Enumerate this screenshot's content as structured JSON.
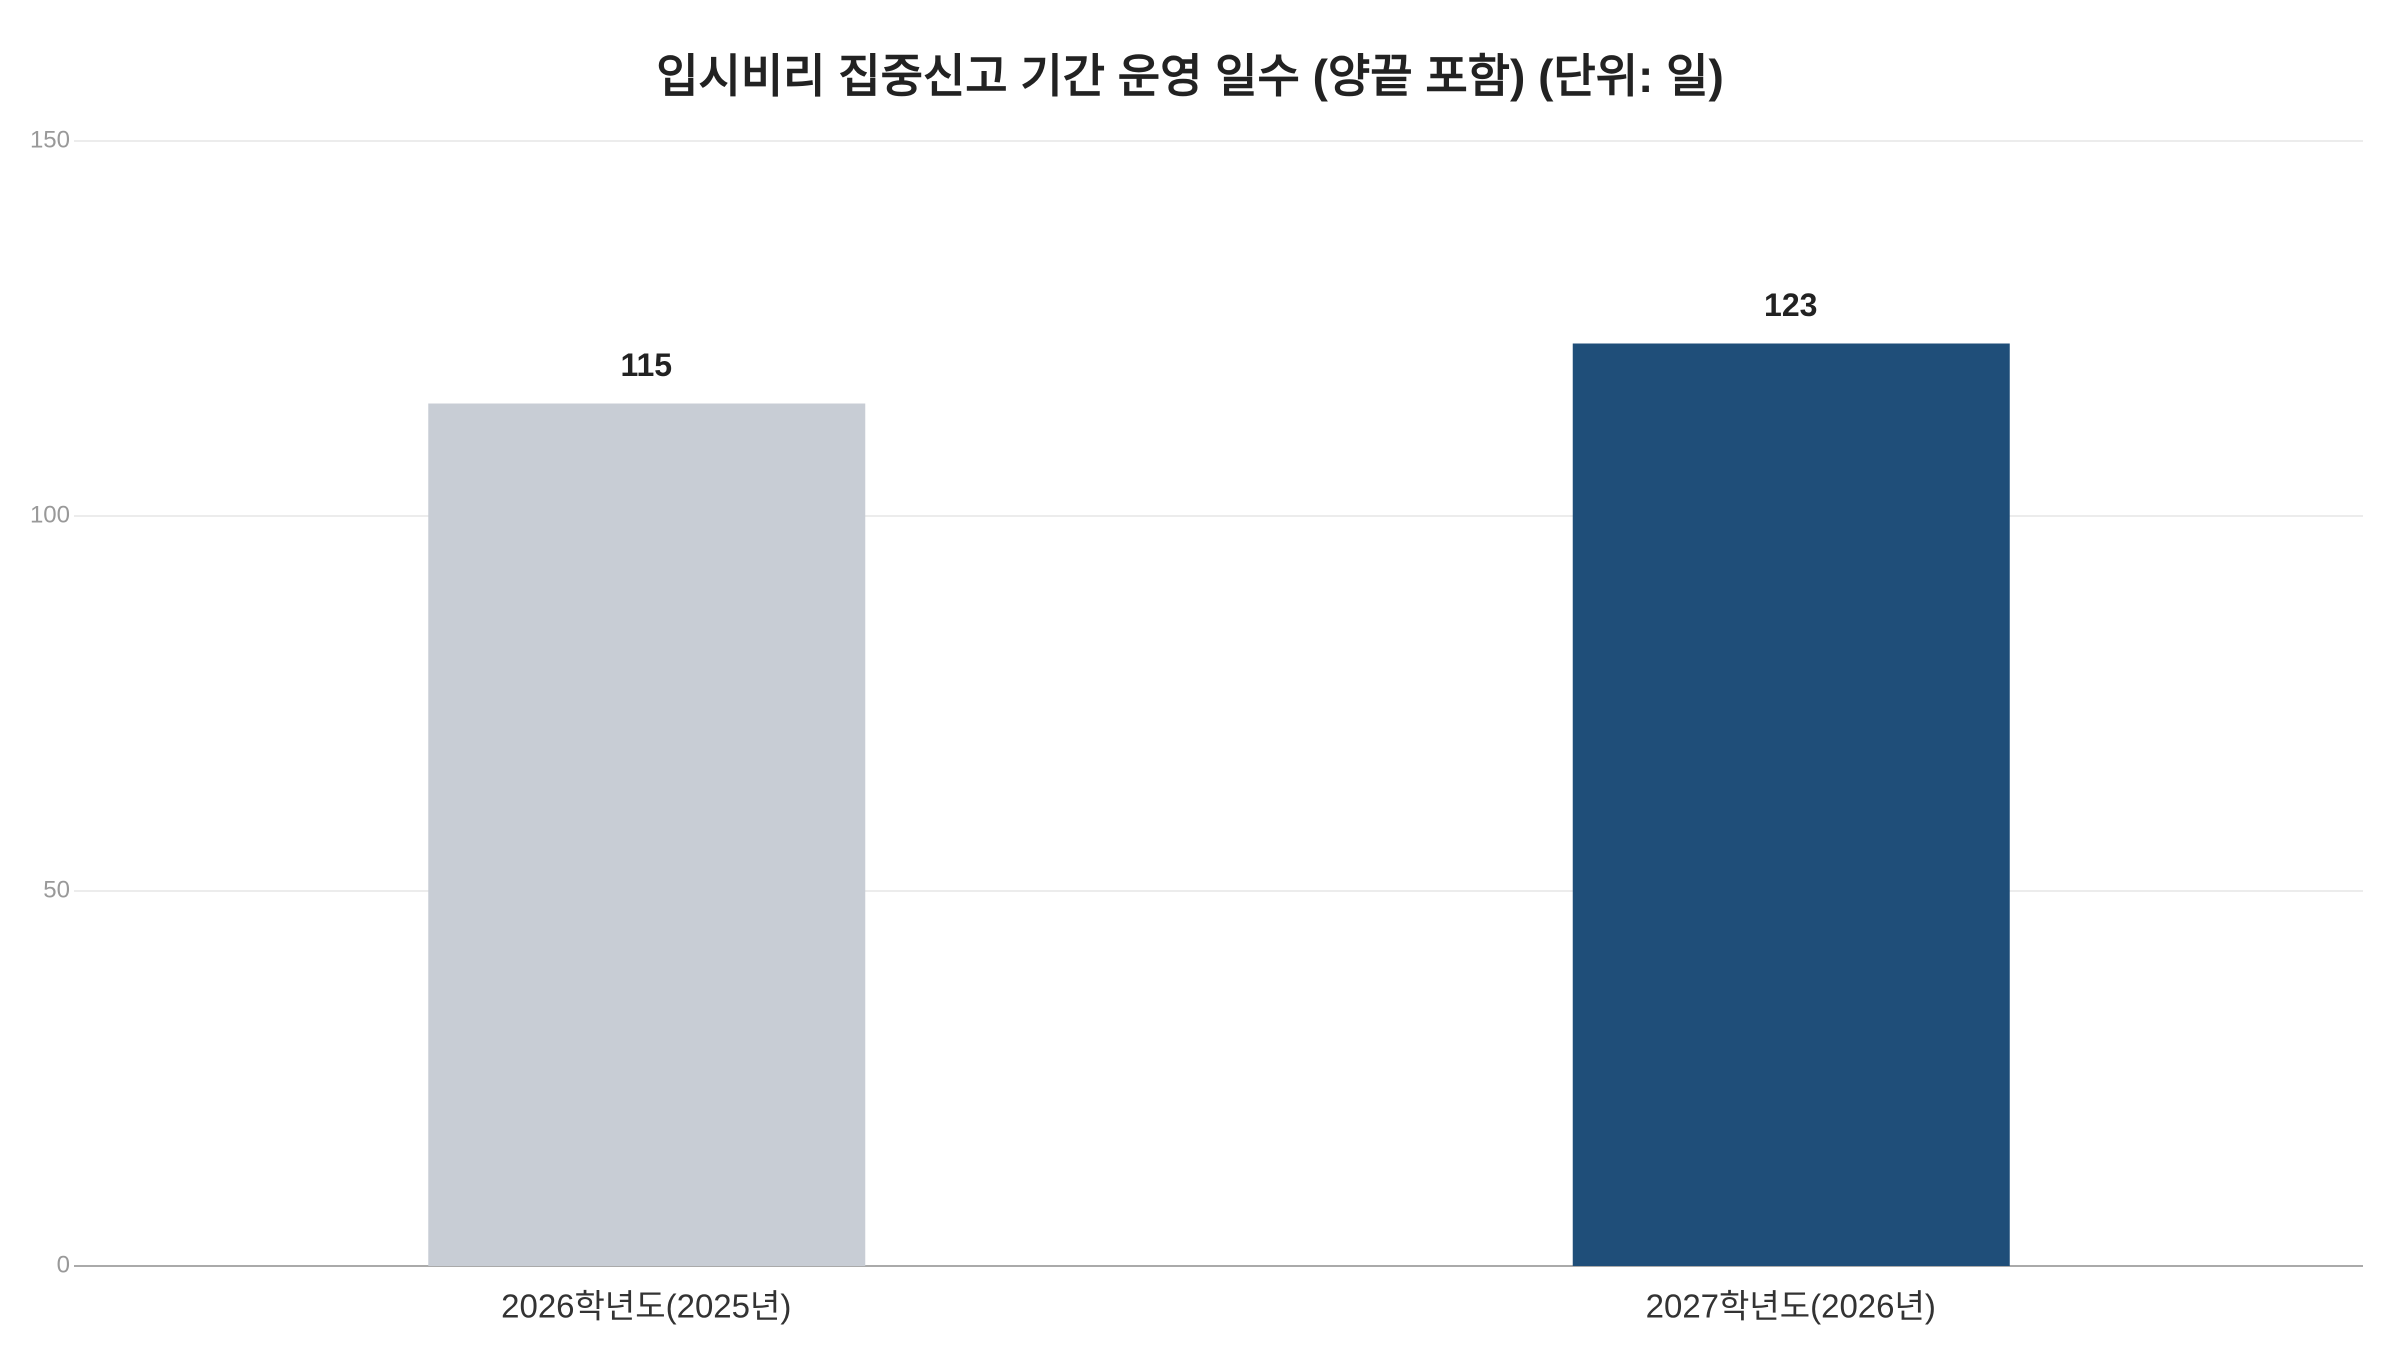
{
  "chart_data": {
    "type": "bar",
    "title": "입시비리 집중신고 기간 운영 일수 (양끝 포함) (단위: 일)",
    "categories": [
      "2026학년도(2025년)",
      "2027학년도(2026년)"
    ],
    "values": [
      115,
      123
    ],
    "colors": [
      "#c8cdd5",
      "#1f4e79"
    ],
    "ylim": [
      0,
      150
    ],
    "yticks": [
      0,
      50,
      100,
      150
    ],
    "grid": true
  }
}
